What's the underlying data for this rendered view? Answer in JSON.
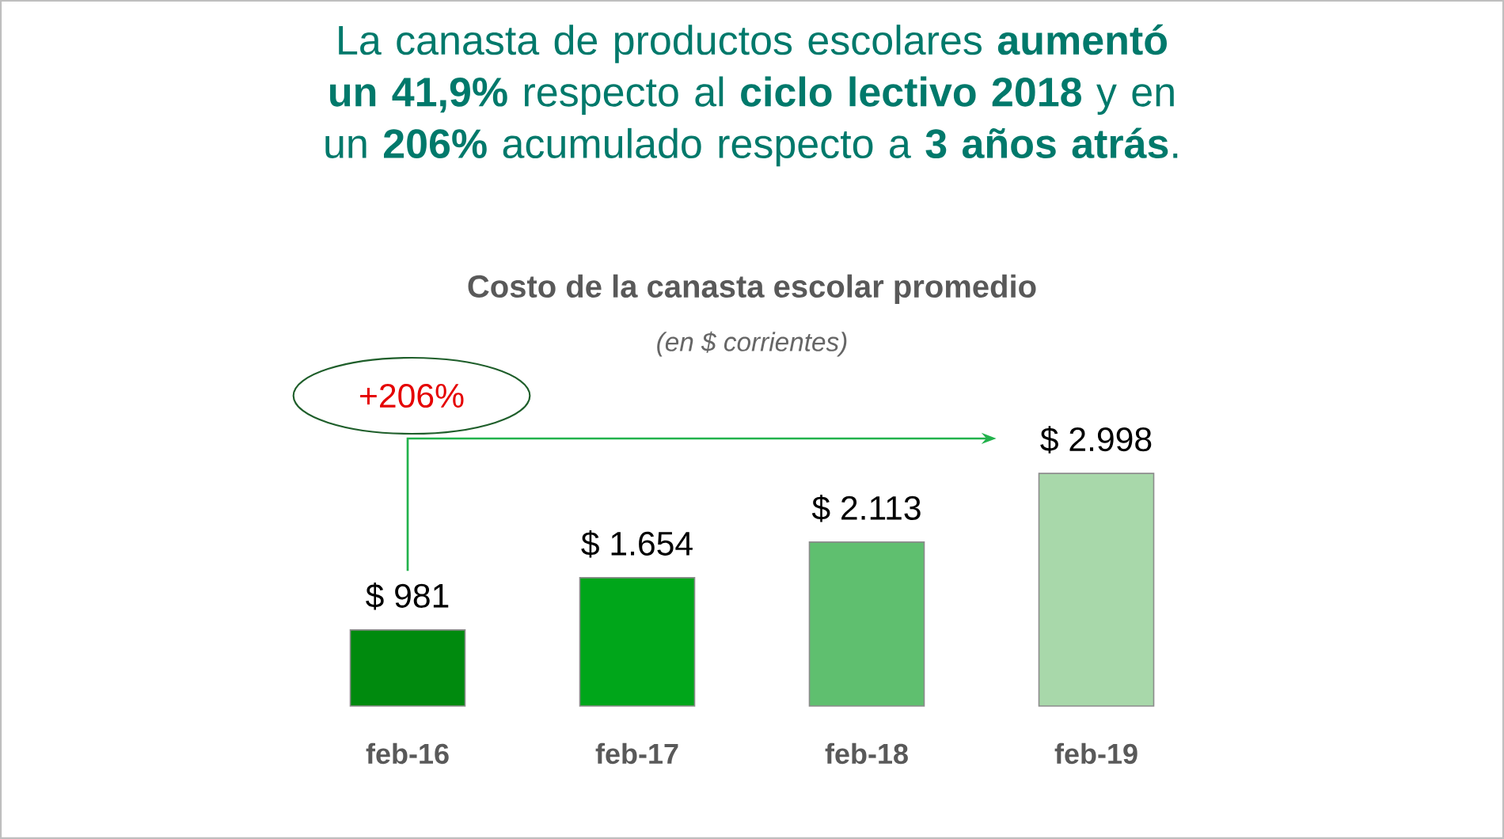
{
  "chart_data": {
    "type": "bar",
    "title": "La canasta de productos escolares **aumentó un 41,9%** respecto al **ciclo lectivo 2018** y en un **206%** acumulado respecto a **3 años atrás**.",
    "subtitle": "Costo de la canasta escolar promedio",
    "annotations": [
      "(en $ corrientes)",
      "+206%"
    ],
    "categories": [
      "feb-16",
      "feb-17",
      "feb-18",
      "feb-19"
    ],
    "values": [
      981,
      1654,
      2113,
      2998
    ],
    "colors": [
      "#008a0e",
      "#00a61a",
      "#5fbf6f",
      "#a8d8aa"
    ],
    "value_labels": [
      "$ 981",
      "$ 1.654",
      "$ 2.113",
      "$ 2.998"
    ]
  }
}
